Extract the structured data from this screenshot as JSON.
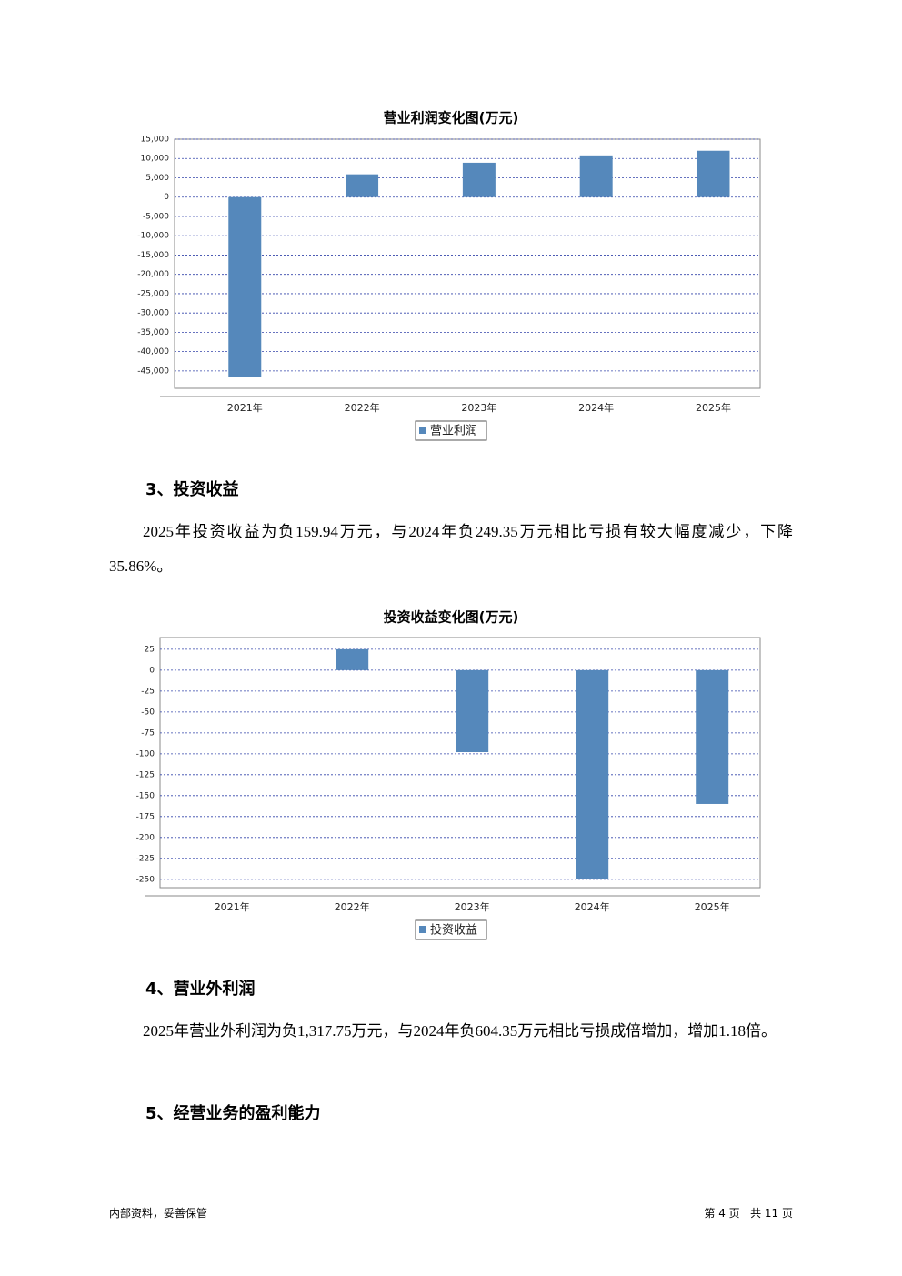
{
  "chart_data": [
    {
      "type": "bar",
      "title": "营业利润变化图(万元)",
      "categories": [
        "2021年",
        "2022年",
        "2023年",
        "2024年",
        "2025年"
      ],
      "series": [
        {
          "name": "营业利润",
          "color": "#5588bb",
          "values": [
            -46500,
            5900,
            8900,
            10800,
            12000
          ]
        }
      ],
      "ylim": [
        -49500,
        15000
      ],
      "yticks": [
        {
          "value": 15000,
          "label": "15,000"
        },
        {
          "value": 10000,
          "label": "10,000"
        },
        {
          "value": 5000,
          "label": "5,000"
        },
        0,
        {
          "value": -5000,
          "label": "-5,000"
        },
        {
          "value": -10000,
          "label": "-10,000"
        },
        {
          "value": -15000,
          "label": "-15,000"
        },
        {
          "value": -20000,
          "label": "-20,000"
        },
        {
          "value": -25000,
          "label": "-25,000"
        },
        {
          "value": -30000,
          "label": "-30,000"
        },
        {
          "value": -35000,
          "label": "-35,000"
        },
        {
          "value": -40000,
          "label": "-40,000"
        },
        {
          "value": -45000,
          "label": "-45,000"
        }
      ],
      "grid": true,
      "legend": "bottom"
    },
    {
      "type": "bar",
      "title": "投资收益变化图(万元)",
      "categories": [
        "2021年",
        "2022年",
        "2023年",
        "2024年",
        "2025年"
      ],
      "series": [
        {
          "name": "投资收益",
          "color": "#5588bb",
          "values": [
            0,
            25,
            -98,
            -249.35,
            -159.94
          ]
        }
      ],
      "ylim": [
        -260,
        39
      ],
      "yticks": [
        25,
        0,
        -25,
        -50,
        -75,
        -100,
        -125,
        -150,
        -175,
        -200,
        -225,
        -250
      ],
      "grid": true,
      "legend": "bottom"
    }
  ],
  "sections": [
    {
      "heading": "3、投资收益",
      "text": "2025年投资收益为负159.94万元，与2024年负249.35万元相比亏损有较大幅度减少，下降35.86%。"
    },
    {
      "heading": "4、营业外利润",
      "text": "2025年营业外利润为负1,317.75万元，与2024年负604.35万元相比亏损成倍增加，增加1.18倍。"
    },
    {
      "heading": "5、经营业务的盈利能力"
    }
  ],
  "footer": {
    "left": "内部资料，妥善保管",
    "right": "第 4 页   共 11 页"
  }
}
